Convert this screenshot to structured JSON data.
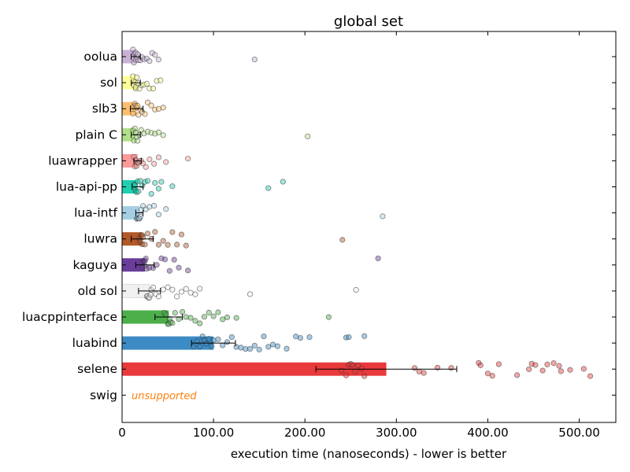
{
  "chart_data": {
    "type": "bar",
    "orientation": "horizontal",
    "title": "global set",
    "xlabel": "execution time (nanoseconds) - lower is better",
    "ylabel": "",
    "xlim": [
      0,
      540
    ],
    "xticks": [
      0,
      100,
      200,
      300,
      400,
      500
    ],
    "xtick_labels": [
      "0",
      "100.00",
      "200.00",
      "300.00",
      "400.00",
      "500.00"
    ],
    "grid": false,
    "legend": "none",
    "unsupported_label": "unsupported",
    "unsupported_color": "#ff7f0e",
    "categories": [
      "oolua",
      "sol",
      "slb3",
      "plain C",
      "luawrapper",
      "lua-api-pp",
      "lua-intf",
      "luwra",
      "kaguya",
      "old sol",
      "luacppinterface",
      "luabind",
      "selene",
      "swig"
    ],
    "series": [
      {
        "label": "oolua",
        "value": 15,
        "error": 5,
        "color": "#cab2d6",
        "samples": [
          12,
          13,
          14,
          15,
          15,
          16,
          17,
          18,
          20,
          22,
          24,
          27,
          30,
          33,
          36,
          40,
          145
        ]
      },
      {
        "label": "sol",
        "value": 15,
        "error": 5,
        "color": "#ffff99",
        "samples": [
          12,
          13,
          14,
          15,
          15,
          16,
          17,
          19,
          21,
          24,
          27,
          30,
          34,
          38,
          42
        ]
      },
      {
        "label": "slb3",
        "value": 16,
        "error": 7,
        "color": "#fdbf6f",
        "samples": [
          12,
          13,
          14,
          15,
          16,
          17,
          18,
          20,
          22,
          25,
          28,
          32,
          36,
          40,
          45
        ]
      },
      {
        "label": "plain C",
        "value": 15,
        "error": 5,
        "color": "#b2df8a",
        "samples": [
          12,
          13,
          14,
          15,
          15,
          16,
          17,
          19,
          21,
          24,
          28,
          32,
          36,
          40,
          45,
          203
        ]
      },
      {
        "label": "luawrapper",
        "value": 17,
        "error": 4,
        "color": "#fb9a99",
        "samples": [
          13,
          14,
          15,
          16,
          17,
          18,
          19,
          21,
          23,
          26,
          30,
          35,
          40,
          48,
          72
        ]
      },
      {
        "label": "lua-api-pp",
        "value": 17,
        "error": 6,
        "color": "#1fcfb0",
        "samples": [
          13,
          14,
          15,
          16,
          17,
          18,
          20,
          22,
          25,
          28,
          32,
          36,
          40,
          43,
          55,
          160,
          176
        ]
      },
      {
        "label": "lua-intf",
        "value": 19,
        "error": 4,
        "color": "#a6cee3",
        "samples": [
          16,
          17,
          18,
          19,
          19,
          20,
          21,
          23,
          26,
          30,
          35,
          40,
          48,
          285
        ]
      },
      {
        "label": "luwra",
        "value": 22,
        "error": 12,
        "color": "#b15928",
        "samples": [
          19,
          20,
          21,
          22,
          22,
          23,
          25,
          28,
          32,
          36,
          40,
          45,
          50,
          55,
          60,
          65,
          70,
          241
        ]
      },
      {
        "label": "kaguya",
        "value": 25,
        "error": 10,
        "color": "#6a3d9a",
        "samples": [
          22,
          23,
          24,
          25,
          25,
          26,
          27,
          30,
          34,
          38,
          43,
          47,
          52,
          57,
          62,
          72,
          280
        ]
      },
      {
        "label": "old sol",
        "value": 30,
        "error": 12,
        "color": "#f0f0f0",
        "samples": [
          27,
          28,
          29,
          30,
          31,
          32,
          34,
          37,
          40,
          45,
          50,
          55,
          60,
          65,
          70,
          75,
          80,
          85,
          140,
          256
        ]
      },
      {
        "label": "luacppinterface",
        "value": 51,
        "error": 15,
        "color": "#4daf4a",
        "samples": [
          46,
          48,
          50,
          51,
          52,
          53,
          55,
          58,
          62,
          66,
          70,
          75,
          80,
          85,
          90,
          95,
          100,
          105,
          110,
          115,
          125,
          226
        ]
      },
      {
        "label": "luabind",
        "value": 100,
        "error": 24,
        "color": "#3d8bc4",
        "samples": [
          78,
          82,
          85,
          88,
          90,
          92,
          95,
          98,
          100,
          105,
          110,
          115,
          120,
          125,
          130,
          135,
          140,
          145,
          150,
          155,
          160,
          165,
          170,
          180,
          190,
          195,
          205,
          245,
          248,
          265
        ]
      },
      {
        "label": "selene",
        "value": 289,
        "error": 77,
        "color": "#e8393b",
        "samples": [
          240,
          245,
          248,
          250,
          252,
          255,
          258,
          262,
          265,
          320,
          325,
          330,
          345,
          360,
          390,
          392,
          400,
          405,
          412,
          432,
          445,
          448,
          452,
          460,
          465,
          472,
          478,
          480,
          490,
          505,
          512
        ]
      },
      {
        "label": "swig",
        "value": null,
        "error": null,
        "color": "#ff7f0e",
        "samples": [],
        "unsupported": true
      }
    ]
  }
}
